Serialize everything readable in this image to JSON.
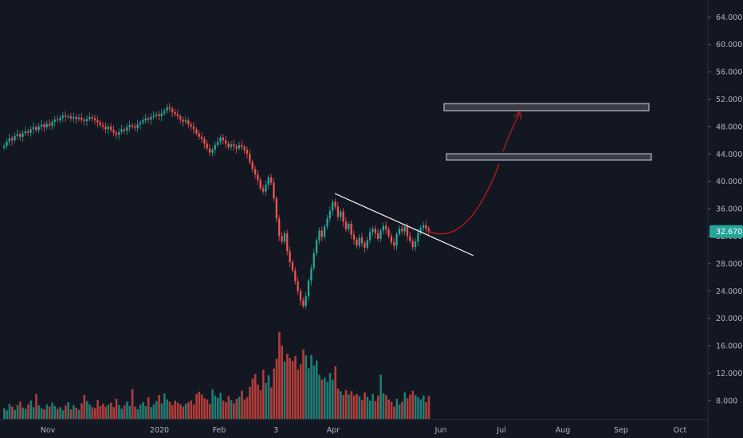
{
  "colors": {
    "background": "#131722",
    "up": "#26a69a",
    "down": "#ef5350",
    "volume_up": "#1f7d74",
    "volume_down": "#b23d3a",
    "axis_text": "#b2b5be",
    "trendline": "#ffffff",
    "projection": "#b71c1c",
    "zone_fill": "#3a3d46",
    "zone_border": "#d1d4dc",
    "price_tag": "#26a69a"
  },
  "chart_data": {
    "type": "candlestick",
    "price_axis": {
      "ticks": [
        "64.000",
        "60.000",
        "56.000",
        "52.000",
        "48.000",
        "44.000",
        "40.000",
        "36.000",
        "32.000",
        "28.000",
        "24.000",
        "20.000",
        "16.000",
        "12.000",
        "8.000"
      ],
      "range": [
        6,
        66
      ]
    },
    "time_axis": {
      "labels": [
        "Nov",
        "2020",
        "Feb",
        "3",
        "Apr",
        "Jun",
        "Jul",
        "Aug",
        "Sep",
        "Oct"
      ]
    },
    "last_price": "32.670",
    "last_price_value": 32.67,
    "closes": [
      45.2,
      45.8,
      46.3,
      46.0,
      46.6,
      46.9,
      46.5,
      47.0,
      47.3,
      47.1,
      47.6,
      47.9,
      47.5,
      48.0,
      48.3,
      47.9,
      48.4,
      48.1,
      48.7,
      49.0,
      48.9,
      49.3,
      49.6,
      49.4,
      49.5,
      49.2,
      49.4,
      49.1,
      49.3,
      49.0,
      48.8,
      49.1,
      49.4,
      49.2,
      48.9,
      48.6,
      48.2,
      48.0,
      47.6,
      48.0,
      47.5,
      47.1,
      46.8,
      47.2,
      47.6,
      47.4,
      47.9,
      48.2,
      48.0,
      47.8,
      48.3,
      48.6,
      48.9,
      49.2,
      49.0,
      49.4,
      49.6,
      49.8,
      49.5,
      49.9,
      50.3,
      50.8,
      50.6,
      50.1,
      49.8,
      49.5,
      49.0,
      48.7,
      48.9,
      48.3,
      48.0,
      47.6,
      47.0,
      46.5,
      46.2,
      45.5,
      44.8,
      44.2,
      44.6,
      45.3,
      45.8,
      46.4,
      46.0,
      45.5,
      45.0,
      45.4,
      45.1,
      44.8,
      45.3,
      45.0,
      44.6,
      44.0,
      42.8,
      41.8,
      41.0,
      40.2,
      39.0,
      38.5,
      39.5,
      40.6,
      39.8,
      37.5,
      34.6,
      32.0,
      31.2,
      32.4,
      29.8,
      28.2,
      27.0,
      25.4,
      24.0,
      22.6,
      21.8,
      23.2,
      25.5,
      27.3,
      29.5,
      31.4,
      32.8,
      31.9,
      33.4,
      34.6,
      35.7,
      37.0,
      36.3,
      34.8,
      35.6,
      34.1,
      33.0,
      33.8,
      32.2,
      31.5,
      30.6,
      31.8,
      31.0,
      30.3,
      31.4,
      32.6,
      33.1,
      32.4,
      31.6,
      32.8,
      33.5,
      33.0,
      32.0,
      31.1,
      30.6,
      32.3,
      33.1,
      32.7,
      33.4,
      32.0,
      31.3,
      30.4,
      31.2,
      32.5,
      33.2,
      33.6,
      33.1,
      32.67
    ],
    "volumes": [
      6.2,
      5.8,
      7.0,
      6.5,
      5.9,
      6.8,
      7.4,
      6.3,
      6.1,
      6.9,
      7.6,
      6.4,
      8.8,
      6.7,
      6.2,
      6.0,
      6.9,
      6.5,
      7.2,
      6.6,
      6.1,
      6.4,
      5.8,
      6.7,
      7.3,
      6.0,
      6.8,
      6.3,
      5.9,
      7.1,
      8.6,
      7.5,
      6.9,
      6.4,
      6.2,
      7.7,
      6.6,
      7.0,
      6.5,
      6.9,
      7.2,
      6.4,
      7.9,
      6.8,
      6.1,
      6.7,
      7.4,
      6.6,
      9.7,
      6.5,
      6.0,
      6.9,
      7.3,
      6.6,
      8.2,
      6.4,
      6.9,
      7.5,
      8.6,
      7.1,
      8.9,
      7.8,
      7.4,
      6.8,
      7.6,
      7.2,
      6.9,
      6.5,
      7.0,
      7.3,
      7.6,
      6.9,
      8.8,
      9.2,
      8.7,
      8.0,
      7.8,
      7.0,
      9.6,
      8.5,
      8.1,
      9.0,
      7.6,
      7.3,
      8.4,
      7.7,
      7.1,
      7.9,
      8.3,
      9.4,
      7.8,
      8.2,
      10.1,
      11.6,
      12.4,
      10.5,
      9.5,
      13.2,
      10.8,
      12.2,
      10.0,
      13.4,
      15.2,
      20.1,
      17.6,
      14.7,
      16.1,
      15.3,
      14.8,
      15.7,
      13.2,
      14.2,
      16.9,
      15.8,
      13.5,
      15.9,
      14.0,
      14.9,
      12.3,
      11.4,
      11.8,
      11.0,
      12.6,
      11.4,
      13.8,
      9.8,
      9.3,
      8.6,
      9.5,
      8.7,
      9.3,
      8.5,
      8.8,
      8.4,
      7.7,
      9.1,
      8.3,
      7.6,
      8.8,
      7.5,
      8.5,
      12.3,
      8.9,
      8.6,
      7.8,
      7.4,
      6.5,
      7.9,
      6.9,
      7.4,
      9.1,
      8.0,
      8.7,
      9.4,
      8.6,
      8.2,
      7.8,
      8.5,
      7.3,
      8.4
    ],
    "annotations": {
      "trendline": [
        [
          0,
          0
        ],
        [
          1,
          1
        ]
      ],
      "zones": [
        "target-zone-upper",
        "target-zone-lower"
      ],
      "projection": "curved-arrow-up"
    }
  }
}
